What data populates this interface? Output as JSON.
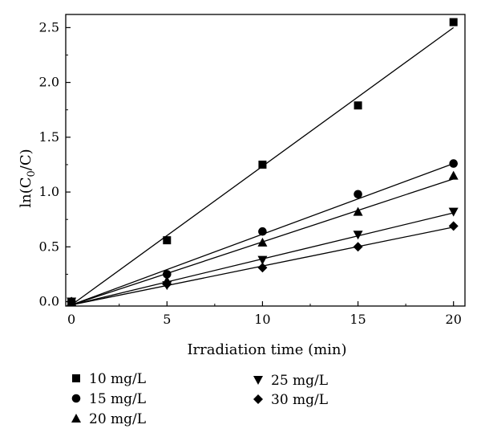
{
  "chart_data": {
    "type": "scatter",
    "xlabel": "Irradiation time (min)",
    "ylabel": {
      "prefix": "ln(C",
      "sub": "0",
      "suffix": "/C)"
    },
    "xlim": [
      -0.3,
      20.6
    ],
    "ylim": [
      -0.04,
      2.62
    ],
    "xticks": [
      0,
      5,
      10,
      15,
      20
    ],
    "xtick_labels": [
      "0",
      "5",
      "10",
      "15",
      "20"
    ],
    "yticks": [
      0.0,
      0.5,
      1.0,
      1.5,
      2.0,
      2.5
    ],
    "ytick_labels": [
      "0.0",
      "0.5",
      "1.0",
      "1.5",
      "2.0",
      "2.5"
    ],
    "grid": false,
    "legend_position": "bottom",
    "series": [
      {
        "name": "10 mg/L",
        "marker": "square",
        "x": [
          0,
          5,
          10,
          15,
          20
        ],
        "y": [
          0.0,
          0.56,
          1.25,
          1.79,
          2.55
        ],
        "fit": [
          [
            0,
            -0.03
          ],
          [
            20,
            2.5
          ]
        ]
      },
      {
        "name": "15 mg/L",
        "marker": "circle",
        "x": [
          0,
          5,
          10,
          15,
          20
        ],
        "y": [
          0.0,
          0.25,
          0.64,
          0.98,
          1.26
        ],
        "fit": [
          [
            0,
            -0.03
          ],
          [
            20,
            1.26
          ]
        ]
      },
      {
        "name": "20 mg/L",
        "marker": "triangle-up",
        "x": [
          0,
          5,
          10,
          15,
          20
        ],
        "y": [
          0.0,
          0.19,
          0.54,
          0.82,
          1.15
        ],
        "fit": [
          [
            0,
            -0.03
          ],
          [
            20,
            1.12
          ]
        ]
      },
      {
        "name": "25 mg/L",
        "marker": "triangle-down",
        "x": [
          0,
          5,
          10,
          15,
          20
        ],
        "y": [
          0.0,
          0.15,
          0.38,
          0.61,
          0.82
        ],
        "fit": [
          [
            0,
            -0.03
          ],
          [
            20,
            0.81
          ]
        ]
      },
      {
        "name": "30 mg/L",
        "marker": "diamond",
        "x": [
          0,
          5,
          10,
          15,
          20
        ],
        "y": [
          0.0,
          0.16,
          0.31,
          0.5,
          0.69
        ],
        "fit": [
          [
            0,
            -0.03
          ],
          [
            20,
            0.68
          ]
        ]
      }
    ]
  }
}
